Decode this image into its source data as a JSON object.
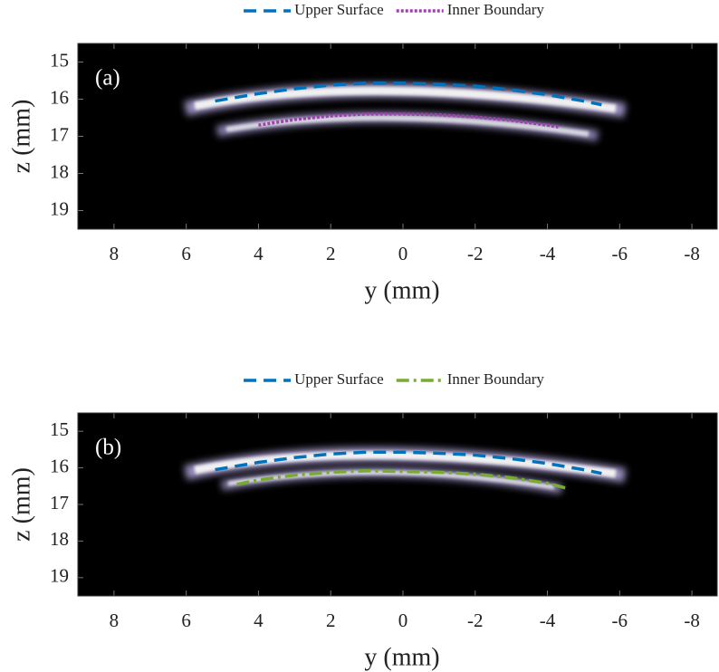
{
  "chart_data": [
    {
      "type": "line",
      "annotation": "(a)",
      "xlabel": "y (mm)",
      "ylabel": "z (mm)",
      "xlim": [
        9,
        -8.7
      ],
      "ylim": [
        19.5,
        14.5
      ],
      "xticks": [
        8,
        6,
        4,
        2,
        0,
        -2,
        -4,
        -6,
        -8
      ],
      "yticks": [
        15,
        16,
        17,
        18,
        19
      ],
      "legend": "top",
      "series": [
        {
          "name": "Upper Surface",
          "color": "#0072bd",
          "style": "dashed",
          "x": [
            5.2,
            4,
            3,
            2,
            1,
            0,
            -1,
            -2,
            -3,
            -4,
            -5,
            -5.5
          ],
          "values": [
            16.05,
            15.85,
            15.72,
            15.62,
            15.57,
            15.57,
            15.6,
            15.65,
            15.75,
            15.88,
            16.05,
            16.15
          ]
        },
        {
          "name": "Inner Boundary",
          "color": "#a040b0",
          "style": "dotted",
          "x": [
            4,
            3,
            2,
            1,
            0,
            -1,
            -2,
            -3,
            -4,
            -4.3
          ],
          "values": [
            16.7,
            16.55,
            16.45,
            16.4,
            16.4,
            16.42,
            16.48,
            16.57,
            16.7,
            16.75
          ]
        }
      ]
    },
    {
      "type": "line",
      "annotation": "(b)",
      "xlabel": "y (mm)",
      "ylabel": "z (mm)",
      "xlim": [
        9,
        -8.7
      ],
      "ylim": [
        19.5,
        14.5
      ],
      "xticks": [
        8,
        6,
        4,
        2,
        0,
        -2,
        -4,
        -6,
        -8
      ],
      "yticks": [
        15,
        16,
        17,
        18,
        19
      ],
      "legend": "top",
      "series": [
        {
          "name": "Upper Surface",
          "color": "#0072bd",
          "style": "dashed",
          "x": [
            5.2,
            4,
            3,
            2,
            1,
            0,
            -1,
            -2,
            -3,
            -4,
            -5,
            -5.5
          ],
          "values": [
            16.05,
            15.85,
            15.72,
            15.62,
            15.57,
            15.57,
            15.6,
            15.65,
            15.75,
            15.88,
            16.05,
            16.15
          ]
        },
        {
          "name": "Inner Boundary",
          "color": "#77ac30",
          "style": "dashdot",
          "x": [
            4.6,
            4,
            3,
            2,
            1,
            0,
            -1,
            -2,
            -3,
            -4,
            -4.5
          ],
          "values": [
            16.45,
            16.33,
            16.2,
            16.12,
            16.08,
            16.1,
            16.12,
            16.17,
            16.27,
            16.42,
            16.55
          ]
        }
      ]
    }
  ]
}
